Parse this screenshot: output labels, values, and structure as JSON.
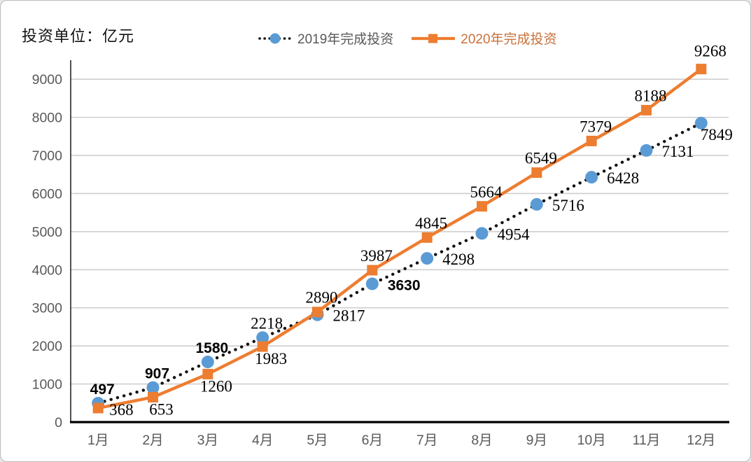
{
  "header": {
    "unit_label": "投资单位：亿元"
  },
  "legend": {
    "items": [
      {
        "label": "2019年完成投资",
        "text_color": "#595959",
        "marker": "dotted-line-blue-circle"
      },
      {
        "label": "2020年完成投资",
        "text_color": "#c9713a",
        "marker": "solid-line-orange-square"
      }
    ]
  },
  "colors": {
    "series_2019_marker": "#5B9BD5",
    "series_2019_line": "#111111",
    "series_2020": "#ED7D31",
    "gridline": "#D0CECE",
    "y_axis_line": "#262626",
    "x_axis_line": "#000000",
    "tick_label": "#595959",
    "data_label": "#000000",
    "background": "#FFFFFF",
    "frame_border": "#B9B9B9"
  },
  "chart_data": {
    "type": "line",
    "title": "",
    "unit_label": "投资单位：亿元",
    "categories": [
      "1月",
      "2月",
      "3月",
      "4月",
      "5月",
      "6月",
      "7月",
      "8月",
      "9月",
      "10月",
      "11月",
      "12月"
    ],
    "series": [
      {
        "name": "2019年完成投资",
        "values": [
          497,
          907,
          1580,
          2218,
          2817,
          3630,
          4298,
          4954,
          5716,
          6428,
          7131,
          7849
        ],
        "line_style": "dotted",
        "line_color": "#111111",
        "marker": "circle",
        "marker_color": "#5B9BD5",
        "label_fonts": [
          "sans",
          "sans",
          "sans",
          "serif",
          "serif",
          "sans",
          "serif",
          "serif",
          "serif",
          "serif",
          "serif",
          "serif"
        ]
      },
      {
        "name": "2020年完成投资",
        "values": [
          368,
          653,
          1260,
          1983,
          2890,
          3987,
          4845,
          5664,
          6549,
          7379,
          8188,
          9268
        ],
        "line_style": "solid",
        "line_color": "#ED7D31",
        "marker": "square",
        "marker_color": "#ED7D31",
        "label_fonts": [
          "serif",
          "serif",
          "serif",
          "serif",
          "serif",
          "serif",
          "serif",
          "serif",
          "serif",
          "serif",
          "serif",
          "serif"
        ]
      }
    ],
    "xlabel": "",
    "ylabel": "",
    "ylim": [
      0,
      9500
    ],
    "yticks": [
      0,
      1000,
      2000,
      3000,
      4000,
      5000,
      6000,
      7000,
      8000,
      9000
    ],
    "grid": true,
    "legend_position": "top-center",
    "data_labels": true
  }
}
